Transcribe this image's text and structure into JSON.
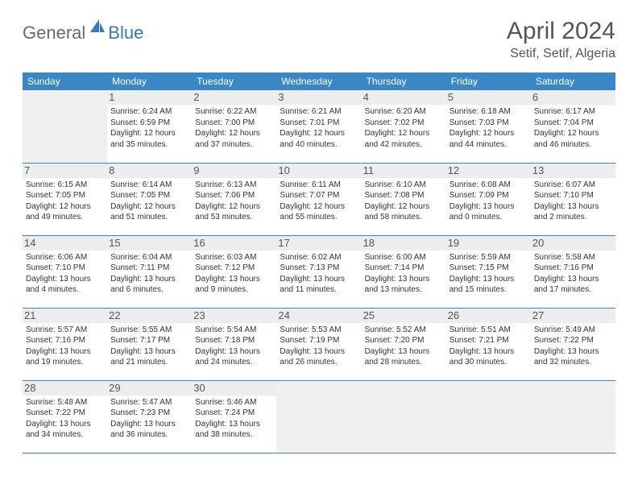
{
  "logo": {
    "part1": "General",
    "part2": "Blue"
  },
  "title": "April 2024",
  "location": "Setif, Setif, Algeria",
  "colors": {
    "header_bg": "#3a87c8",
    "header_text": "#ffffff",
    "row_border": "#3a87c8",
    "empty_bg": "#f0f0f0",
    "daynum_bg": "#ededed",
    "logo_gray": "#6a6a6a",
    "logo_blue": "#2f7bbf",
    "title_color": "#555555",
    "body_text": "#333333"
  },
  "weekdays": [
    "Sunday",
    "Monday",
    "Tuesday",
    "Wednesday",
    "Thursday",
    "Friday",
    "Saturday"
  ],
  "layout": {
    "first_weekday_index": 1,
    "days_in_month": 30,
    "rows": 5,
    "cols": 7
  },
  "days": {
    "1": {
      "sunrise": "6:24 AM",
      "sunset": "6:59 PM",
      "daylight": "12 hours and 35 minutes."
    },
    "2": {
      "sunrise": "6:22 AM",
      "sunset": "7:00 PM",
      "daylight": "12 hours and 37 minutes."
    },
    "3": {
      "sunrise": "6:21 AM",
      "sunset": "7:01 PM",
      "daylight": "12 hours and 40 minutes."
    },
    "4": {
      "sunrise": "6:20 AM",
      "sunset": "7:02 PM",
      "daylight": "12 hours and 42 minutes."
    },
    "5": {
      "sunrise": "6:18 AM",
      "sunset": "7:03 PM",
      "daylight": "12 hours and 44 minutes."
    },
    "6": {
      "sunrise": "6:17 AM",
      "sunset": "7:04 PM",
      "daylight": "12 hours and 46 minutes."
    },
    "7": {
      "sunrise": "6:15 AM",
      "sunset": "7:05 PM",
      "daylight": "12 hours and 49 minutes."
    },
    "8": {
      "sunrise": "6:14 AM",
      "sunset": "7:05 PM",
      "daylight": "12 hours and 51 minutes."
    },
    "9": {
      "sunrise": "6:13 AM",
      "sunset": "7:06 PM",
      "daylight": "12 hours and 53 minutes."
    },
    "10": {
      "sunrise": "6:11 AM",
      "sunset": "7:07 PM",
      "daylight": "12 hours and 55 minutes."
    },
    "11": {
      "sunrise": "6:10 AM",
      "sunset": "7:08 PM",
      "daylight": "12 hours and 58 minutes."
    },
    "12": {
      "sunrise": "6:08 AM",
      "sunset": "7:09 PM",
      "daylight": "13 hours and 0 minutes."
    },
    "13": {
      "sunrise": "6:07 AM",
      "sunset": "7:10 PM",
      "daylight": "13 hours and 2 minutes."
    },
    "14": {
      "sunrise": "6:06 AM",
      "sunset": "7:10 PM",
      "daylight": "13 hours and 4 minutes."
    },
    "15": {
      "sunrise": "6:04 AM",
      "sunset": "7:11 PM",
      "daylight": "13 hours and 6 minutes."
    },
    "16": {
      "sunrise": "6:03 AM",
      "sunset": "7:12 PM",
      "daylight": "13 hours and 9 minutes."
    },
    "17": {
      "sunrise": "6:02 AM",
      "sunset": "7:13 PM",
      "daylight": "13 hours and 11 minutes."
    },
    "18": {
      "sunrise": "6:00 AM",
      "sunset": "7:14 PM",
      "daylight": "13 hours and 13 minutes."
    },
    "19": {
      "sunrise": "5:59 AM",
      "sunset": "7:15 PM",
      "daylight": "13 hours and 15 minutes."
    },
    "20": {
      "sunrise": "5:58 AM",
      "sunset": "7:16 PM",
      "daylight": "13 hours and 17 minutes."
    },
    "21": {
      "sunrise": "5:57 AM",
      "sunset": "7:16 PM",
      "daylight": "13 hours and 19 minutes."
    },
    "22": {
      "sunrise": "5:55 AM",
      "sunset": "7:17 PM",
      "daylight": "13 hours and 21 minutes."
    },
    "23": {
      "sunrise": "5:54 AM",
      "sunset": "7:18 PM",
      "daylight": "13 hours and 24 minutes."
    },
    "24": {
      "sunrise": "5:53 AM",
      "sunset": "7:19 PM",
      "daylight": "13 hours and 26 minutes."
    },
    "25": {
      "sunrise": "5:52 AM",
      "sunset": "7:20 PM",
      "daylight": "13 hours and 28 minutes."
    },
    "26": {
      "sunrise": "5:51 AM",
      "sunset": "7:21 PM",
      "daylight": "13 hours and 30 minutes."
    },
    "27": {
      "sunrise": "5:49 AM",
      "sunset": "7:22 PM",
      "daylight": "13 hours and 32 minutes."
    },
    "28": {
      "sunrise": "5:48 AM",
      "sunset": "7:22 PM",
      "daylight": "13 hours and 34 minutes."
    },
    "29": {
      "sunrise": "5:47 AM",
      "sunset": "7:23 PM",
      "daylight": "13 hours and 36 minutes."
    },
    "30": {
      "sunrise": "5:46 AM",
      "sunset": "7:24 PM",
      "daylight": "13 hours and 38 minutes."
    }
  },
  "labels": {
    "sunrise": "Sunrise:",
    "sunset": "Sunset:",
    "daylight": "Daylight:"
  }
}
